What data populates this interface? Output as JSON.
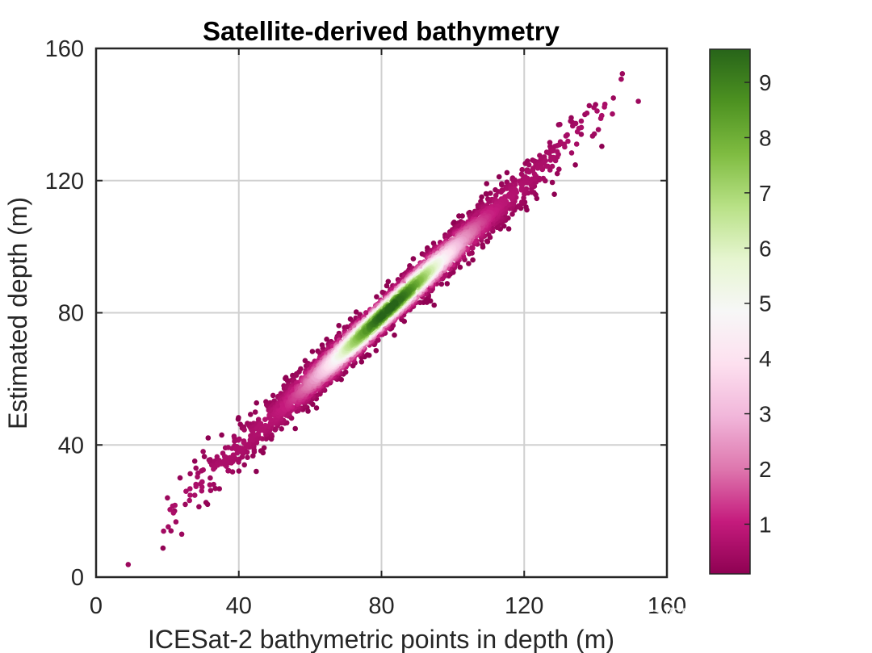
{
  "chart_data": {
    "type": "scatter",
    "title": "Satellite-derived bathymetry",
    "xlabel": "ICESat-2 bathymetric points in depth (m)",
    "ylabel": "Estimated depth (m)",
    "xlim": [
      0,
      160
    ],
    "ylim": [
      0,
      160
    ],
    "xticks": [
      "0",
      "40",
      "80",
      "120",
      "160"
    ],
    "yticks": [
      "0",
      "40",
      "80",
      "120",
      "160"
    ],
    "grid": true,
    "colorbar": {
      "range": [
        0.1,
        9.6
      ],
      "ticks": [
        "1",
        "2",
        "3",
        "4",
        "5",
        "6",
        "7",
        "8",
        "9"
      ],
      "colormap": [
        "#8e0152",
        "#c51b7d",
        "#de77ae",
        "#f1b6da",
        "#fde0ef",
        "#f7f7f7",
        "#e6f5d0",
        "#b8e186",
        "#7fbc41",
        "#4d9221",
        "#276419"
      ]
    },
    "point_color_metric": "point density",
    "fit_trend": {
      "slope": 1.0,
      "intercept": -1.0,
      "x_range": [
        9,
        152
      ]
    },
    "points": [
      [
        9.0,
        3.8
      ],
      [
        21.0,
        14.0
      ],
      [
        24.0,
        13.0
      ],
      [
        20.0,
        24.0
      ],
      [
        22.0,
        20.0
      ],
      [
        25.0,
        22.0
      ],
      [
        28.0,
        33.0
      ],
      [
        32.0,
        30.0
      ],
      [
        30.0,
        38.0
      ],
      [
        145.0,
        145.0
      ],
      [
        152.0,
        144.0
      ],
      [
        140.0,
        143.0
      ],
      [
        137.0,
        140.0
      ],
      [
        136.0,
        134.0
      ],
      [
        133.0,
        138.0
      ],
      [
        130.0,
        137.0
      ]
    ]
  },
  "watermark": {
    "text": "知乎 @阿昆的科研日常"
  }
}
